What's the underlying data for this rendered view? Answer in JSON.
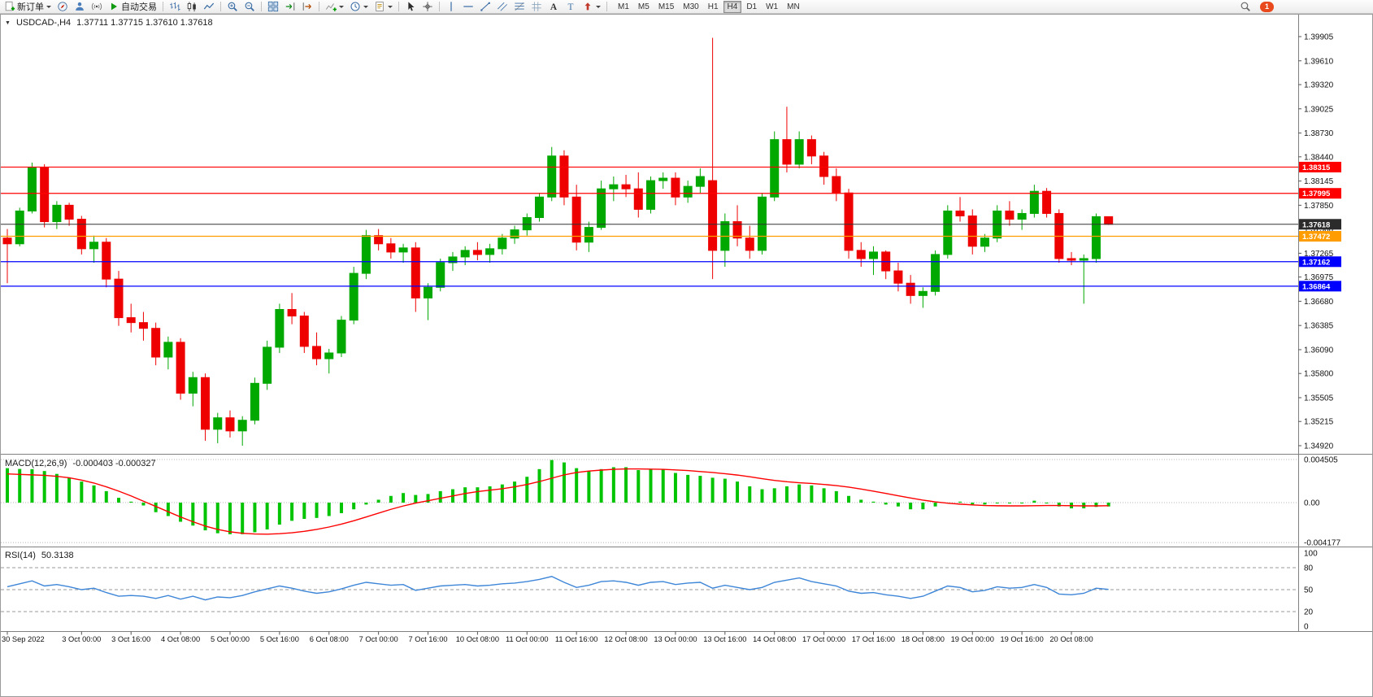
{
  "toolbar": {
    "new_order_label": "新订单",
    "autotrading_label": "自动交易",
    "buttons": [
      {
        "icon": "new-order",
        "label_key": "new_order_label",
        "caret": true
      },
      {
        "icon": "compass"
      },
      {
        "icon": "profile"
      },
      {
        "icon": "signals"
      },
      {
        "icon": "autotrading-play",
        "label_key": "autotrading_label"
      },
      {
        "sep": true
      },
      {
        "icon": "bar-chart"
      },
      {
        "icon": "candlestick"
      },
      {
        "icon": "line-chart"
      },
      {
        "sep": true
      },
      {
        "icon": "zoom-in"
      },
      {
        "icon": "zoom-out"
      },
      {
        "sep": true
      },
      {
        "icon": "tile-windows"
      },
      {
        "icon": "auto-scroll"
      },
      {
        "icon": "chart-shift"
      },
      {
        "sep": true
      },
      {
        "icon": "indicators",
        "caret": true
      },
      {
        "icon": "periods",
        "caret": true
      },
      {
        "icon": "templates",
        "caret": true
      },
      {
        "sep": true
      },
      {
        "icon": "cursor"
      },
      {
        "icon": "crosshair"
      },
      {
        "sep": true
      },
      {
        "icon": "vertical-line"
      },
      {
        "icon": "horizontal-line"
      },
      {
        "icon": "trendline"
      },
      {
        "icon": "channel"
      },
      {
        "icon": "fibonacci"
      },
      {
        "icon": "grid"
      },
      {
        "icon": "text"
      },
      {
        "icon": "text-label"
      },
      {
        "icon": "arrows",
        "caret": true
      },
      {
        "sep": true
      }
    ],
    "timeframes": [
      "M1",
      "M5",
      "M15",
      "M30",
      "H1",
      "H4",
      "D1",
      "W1",
      "MN"
    ],
    "active_timeframe": "H4",
    "notification_count": "1"
  },
  "chart": {
    "title_symbol": "USDCAD-,H4",
    "title_ohlc": "1.37711 1.37715 1.37610 1.37618"
  },
  "macd": {
    "title": "MACD(12,26,9)",
    "values": "-0.000403 -0.000327"
  },
  "rsi": {
    "title": "RSI(14)",
    "value": "50.3138"
  },
  "colors": {
    "bull": "#00A800",
    "bear": "#EE0000",
    "macd_histogram": "#00C400",
    "macd_signal": "#FF0000",
    "rsi_line": "#3E86D8",
    "hline_red": "#FF0000",
    "hline_blue": "#0000FF",
    "hline_orange": "#FF9C00",
    "current_price_box": "#2B2B2B"
  },
  "chart_data": {
    "type": "candlestick",
    "symbol": "USDCAD-",
    "timeframe": "H4",
    "ohlc_current": {
      "open": 1.37711,
      "high": 1.37715,
      "low": 1.3761,
      "close": 1.37618
    },
    "y_axis_ticks": [
      "1.39905",
      "1.39610",
      "1.39320",
      "1.39025",
      "1.38730",
      "1.38440",
      "1.38145",
      "1.37850",
      "1.37560",
      "1.37265",
      "1.36975",
      "1.36680",
      "1.36385",
      "1.36090",
      "1.35800",
      "1.35505",
      "1.35215",
      "1.34920"
    ],
    "candles": [
      [
        1.3745,
        1.3756,
        1.369,
        1.3738
      ],
      [
        1.3738,
        1.3782,
        1.3735,
        1.3778
      ],
      [
        1.3778,
        1.3837,
        1.3775,
        1.3831
      ],
      [
        1.3831,
        1.3835,
        1.3758,
        1.3765
      ],
      [
        1.3765,
        1.379,
        1.3756,
        1.3785
      ],
      [
        1.3785,
        1.3788,
        1.376,
        1.3768
      ],
      [
        1.3768,
        1.3772,
        1.3725,
        1.3732
      ],
      [
        1.3732,
        1.3748,
        1.3715,
        1.374
      ],
      [
        1.374,
        1.3745,
        1.3685,
        1.3695
      ],
      [
        1.3695,
        1.3705,
        1.3638,
        1.3648
      ],
      [
        1.3648,
        1.3665,
        1.363,
        1.3642
      ],
      [
        1.3642,
        1.3655,
        1.362,
        1.3635
      ],
      [
        1.3635,
        1.3642,
        1.359,
        1.36
      ],
      [
        1.36,
        1.3625,
        1.3585,
        1.3618
      ],
      [
        1.3618,
        1.3623,
        1.3548,
        1.3556
      ],
      [
        1.3556,
        1.3582,
        1.354,
        1.3575
      ],
      [
        1.3575,
        1.358,
        1.3498,
        1.3512
      ],
      [
        1.3512,
        1.3532,
        1.3495,
        1.3526
      ],
      [
        1.3526,
        1.3535,
        1.3502,
        1.351
      ],
      [
        1.351,
        1.3528,
        1.3492,
        1.3523
      ],
      [
        1.3523,
        1.3575,
        1.3518,
        1.3568
      ],
      [
        1.3568,
        1.362,
        1.356,
        1.3612
      ],
      [
        1.3612,
        1.3665,
        1.3605,
        1.3658
      ],
      [
        1.3658,
        1.3678,
        1.364,
        1.365
      ],
      [
        1.365,
        1.3655,
        1.3605,
        1.3613
      ],
      [
        1.3613,
        1.363,
        1.359,
        1.3598
      ],
      [
        1.3598,
        1.361,
        1.358,
        1.3605
      ],
      [
        1.3605,
        1.365,
        1.36,
        1.3645
      ],
      [
        1.3645,
        1.371,
        1.364,
        1.3702
      ],
      [
        1.3702,
        1.3755,
        1.3695,
        1.3748
      ],
      [
        1.3748,
        1.3756,
        1.373,
        1.3738
      ],
      [
        1.3738,
        1.3745,
        1.372,
        1.3728
      ],
      [
        1.3728,
        1.3738,
        1.3715,
        1.3733
      ],
      [
        1.3733,
        1.374,
        1.3655,
        1.3672
      ],
      [
        1.3672,
        1.369,
        1.3645,
        1.3685
      ],
      [
        1.3685,
        1.372,
        1.368,
        1.3715
      ],
      [
        1.3715,
        1.3728,
        1.3705,
        1.3722
      ],
      [
        1.3722,
        1.3735,
        1.3712,
        1.373
      ],
      [
        1.373,
        1.374,
        1.3718,
        1.3725
      ],
      [
        1.3725,
        1.3738,
        1.3715,
        1.3732
      ],
      [
        1.3732,
        1.375,
        1.3725,
        1.3745
      ],
      [
        1.3745,
        1.376,
        1.3738,
        1.3755
      ],
      [
        1.3755,
        1.3775,
        1.3748,
        1.377
      ],
      [
        1.377,
        1.38,
        1.3765,
        1.3795
      ],
      [
        1.3795,
        1.3856,
        1.379,
        1.3845
      ],
      [
        1.3845,
        1.3852,
        1.3785,
        1.3795
      ],
      [
        1.3795,
        1.381,
        1.373,
        1.374
      ],
      [
        1.374,
        1.3765,
        1.3728,
        1.3758
      ],
      [
        1.3758,
        1.3815,
        1.3755,
        1.3805
      ],
      [
        1.3805,
        1.382,
        1.379,
        1.381
      ],
      [
        1.381,
        1.3822,
        1.3795,
        1.3805
      ],
      [
        1.3805,
        1.3825,
        1.377,
        1.378
      ],
      [
        1.378,
        1.382,
        1.3775,
        1.3815
      ],
      [
        1.3815,
        1.3825,
        1.3805,
        1.3818
      ],
      [
        1.3818,
        1.3825,
        1.3785,
        1.3795
      ],
      [
        1.3795,
        1.3815,
        1.3788,
        1.3808
      ],
      [
        1.3808,
        1.383,
        1.38,
        1.382
      ],
      [
        1.3815,
        1.3989,
        1.3695,
        1.373
      ],
      [
        1.373,
        1.3775,
        1.371,
        1.3765
      ],
      [
        1.3765,
        1.3785,
        1.3735,
        1.3745
      ],
      [
        1.3745,
        1.376,
        1.372,
        1.373
      ],
      [
        1.373,
        1.38,
        1.3725,
        1.3795
      ],
      [
        1.3795,
        1.3875,
        1.379,
        1.3865
      ],
      [
        1.3865,
        1.3905,
        1.3825,
        1.3835
      ],
      [
        1.3835,
        1.3875,
        1.383,
        1.3865
      ],
      [
        1.3865,
        1.387,
        1.3835,
        1.3845
      ],
      [
        1.3845,
        1.385,
        1.381,
        1.382
      ],
      [
        1.382,
        1.383,
        1.379,
        1.38
      ],
      [
        1.38,
        1.3805,
        1.372,
        1.373
      ],
      [
        1.373,
        1.374,
        1.371,
        1.372
      ],
      [
        1.372,
        1.3735,
        1.37,
        1.3728
      ],
      [
        1.3728,
        1.373,
        1.3695,
        1.3705
      ],
      [
        1.3705,
        1.3715,
        1.368,
        1.369
      ],
      [
        1.369,
        1.37,
        1.3665,
        1.3675
      ],
      [
        1.3675,
        1.3685,
        1.366,
        1.368
      ],
      [
        1.368,
        1.373,
        1.3675,
        1.3725
      ],
      [
        1.3725,
        1.3785,
        1.372,
        1.3778
      ],
      [
        1.3778,
        1.3795,
        1.3765,
        1.3772
      ],
      [
        1.3772,
        1.378,
        1.3725,
        1.3735
      ],
      [
        1.3735,
        1.375,
        1.3728,
        1.3745
      ],
      [
        1.3745,
        1.3785,
        1.374,
        1.3778
      ],
      [
        1.3778,
        1.379,
        1.376,
        1.3768
      ],
      [
        1.3768,
        1.378,
        1.3755,
        1.3775
      ],
      [
        1.3775,
        1.381,
        1.377,
        1.3802
      ],
      [
        1.3802,
        1.3806,
        1.377,
        1.3775
      ],
      [
        1.3775,
        1.378,
        1.3715,
        1.372
      ],
      [
        1.372,
        1.3728,
        1.3712,
        1.3718
      ],
      [
        1.3718,
        1.3725,
        1.3665,
        1.372
      ],
      [
        1.372,
        1.3775,
        1.3715,
        1.37711
      ],
      [
        1.37711,
        1.37715,
        1.3761,
        1.37618
      ]
    ],
    "time_labels": [
      {
        "text": "30 Sep 2022",
        "i": 0
      },
      {
        "text": "3 Oct 00:00",
        "i": 6
      },
      {
        "text": "3 Oct 16:00",
        "i": 10
      },
      {
        "text": "4 Oct 08:00",
        "i": 14
      },
      {
        "text": "5 Oct 00:00",
        "i": 18
      },
      {
        "text": "5 Oct 16:00",
        "i": 22
      },
      {
        "text": "6 Oct 08:00",
        "i": 26
      },
      {
        "text": "7 Oct 00:00",
        "i": 30
      },
      {
        "text": "7 Oct 16:00",
        "i": 34
      },
      {
        "text": "10 Oct 08:00",
        "i": 38
      },
      {
        "text": "11 Oct 00:00",
        "i": 42
      },
      {
        "text": "11 Oct 16:00",
        "i": 46
      },
      {
        "text": "12 Oct 08:00",
        "i": 50
      },
      {
        "text": "13 Oct 00:00",
        "i": 54
      },
      {
        "text": "13 Oct 16:00",
        "i": 58
      },
      {
        "text": "14 Oct 08:00",
        "i": 62
      },
      {
        "text": "17 Oct 00:00",
        "i": 66
      },
      {
        "text": "17 Oct 16:00",
        "i": 70
      },
      {
        "text": "18 Oct 08:00",
        "i": 74
      },
      {
        "text": "19 Oct 00:00",
        "i": 78
      },
      {
        "text": "19 Oct 16:00",
        "i": 82
      },
      {
        "text": "20 Oct 08:00",
        "i": 86
      }
    ],
    "h_lines": [
      {
        "price": 1.38315,
        "color": "#FF0000"
      },
      {
        "price": 1.37995,
        "color": "#FF0000"
      },
      {
        "price": 1.37472,
        "color": "#FF9C00"
      },
      {
        "price": 1.37162,
        "color": "#0000FF"
      },
      {
        "price": 1.36864,
        "color": "#0000FF"
      }
    ],
    "current_price": {
      "price": 1.37618,
      "line_color": "#333333",
      "box_color": "#2B2B2B"
    },
    "indicators": {
      "macd": {
        "axis": [
          "0.004505",
          "0.00",
          "-0.004177"
        ],
        "histogram": [
          0.0036,
          0.00352,
          0.0035,
          0.0033,
          0.003,
          0.0026,
          0.0022,
          0.0018,
          0.0012,
          0.0005,
          0.0001,
          -0.0003,
          -0.001,
          -0.0014,
          -0.002,
          -0.0024,
          -0.0029,
          -0.0032,
          -0.0033,
          -0.0033,
          -0.0031,
          -0.0028,
          -0.0023,
          -0.0019,
          -0.0017,
          -0.0016,
          -0.0014,
          -0.0011,
          -0.0007,
          -0.0002,
          0.0003,
          0.0007,
          0.001,
          0.0008,
          0.0009,
          0.0012,
          0.0014,
          0.0016,
          0.0016,
          0.0017,
          0.0019,
          0.0022,
          0.0027,
          0.0035,
          0.00445,
          0.0042,
          0.0036,
          0.0033,
          0.0035,
          0.0037,
          0.0037,
          0.0034,
          0.0035,
          0.0035,
          0.0031,
          0.0029,
          0.0028,
          0.0026,
          0.0025,
          0.0022,
          0.0017,
          0.0014,
          0.0015,
          0.0017,
          0.0019,
          0.0018,
          0.0015,
          0.0012,
          0.0007,
          0.0003,
          0.0001,
          -0.0002,
          -0.0004,
          -0.0007,
          -0.0007,
          -0.0004,
          0.0,
          0.0001,
          -0.0002,
          -0.0002,
          0.0,
          0.0,
          0.0,
          0.0002,
          0.0,
          -0.0004,
          -0.0006,
          -0.0006,
          -0.00045,
          -0.000403
        ],
        "signal": [
          0.003,
          0.00295,
          0.0029,
          0.00285,
          0.00275,
          0.0026,
          0.00235,
          0.00205,
          0.00165,
          0.0012,
          0.0007,
          0.00015,
          -0.0004,
          -0.00095,
          -0.0015,
          -0.002,
          -0.00245,
          -0.0028,
          -0.00305,
          -0.0032,
          -0.00328,
          -0.0033,
          -0.00325,
          -0.00315,
          -0.003,
          -0.0028,
          -0.00255,
          -0.00225,
          -0.0019,
          -0.0015,
          -0.0011,
          -0.0007,
          -0.00035,
          -5e-05,
          0.0002,
          0.00045,
          0.0007,
          0.00095,
          0.00115,
          0.0013,
          0.00145,
          0.00165,
          0.0019,
          0.0022,
          0.00255,
          0.0029,
          0.00315,
          0.0033,
          0.0034,
          0.00348,
          0.00352,
          0.00352,
          0.0035,
          0.00348,
          0.00342,
          0.00335,
          0.00325,
          0.00315,
          0.00302,
          0.00288,
          0.0027,
          0.0025,
          0.00232,
          0.00218,
          0.00208,
          0.002,
          0.0019,
          0.00178,
          0.00162,
          0.00142,
          0.0012,
          0.00096,
          0.00072,
          0.00048,
          0.00026,
          8e-05,
          -6e-05,
          -0.00016,
          -0.00024,
          -0.0003,
          -0.00033,
          -0.00034,
          -0.00034,
          -0.00032,
          -0.0003,
          -0.0003,
          -0.00032,
          -0.00034,
          -0.00034,
          -0.000327
        ]
      },
      "rsi": {
        "axis": [
          {
            "label": "100",
            "value": 100,
            "dashed": false
          },
          {
            "label": "80",
            "value": 80,
            "dashed": true
          },
          {
            "label": "50",
            "value": 50,
            "dashed": true
          },
          {
            "label": "20",
            "value": 20,
            "dashed": true
          },
          {
            "label": "0",
            "value": 0,
            "dashed": false
          }
        ],
        "values": [
          54,
          58,
          62,
          55,
          57,
          54,
          50,
          52,
          46,
          41,
          42,
          41,
          38,
          42,
          37,
          41,
          36,
          40,
          39,
          42,
          47,
          51,
          55,
          52,
          48,
          45,
          47,
          51,
          56,
          60,
          58,
          56,
          57,
          49,
          52,
          55,
          56,
          57,
          55,
          56,
          58,
          59,
          61,
          64,
          68,
          60,
          53,
          56,
          61,
          62,
          60,
          56,
          60,
          61,
          57,
          59,
          60,
          52,
          56,
          53,
          50,
          53,
          60,
          63,
          66,
          61,
          58,
          55,
          48,
          45,
          46,
          43,
          41,
          38,
          41,
          48,
          55,
          53,
          47,
          49,
          54,
          52,
          53,
          57,
          53,
          44,
          43,
          45,
          52,
          50.3138
        ]
      }
    }
  }
}
